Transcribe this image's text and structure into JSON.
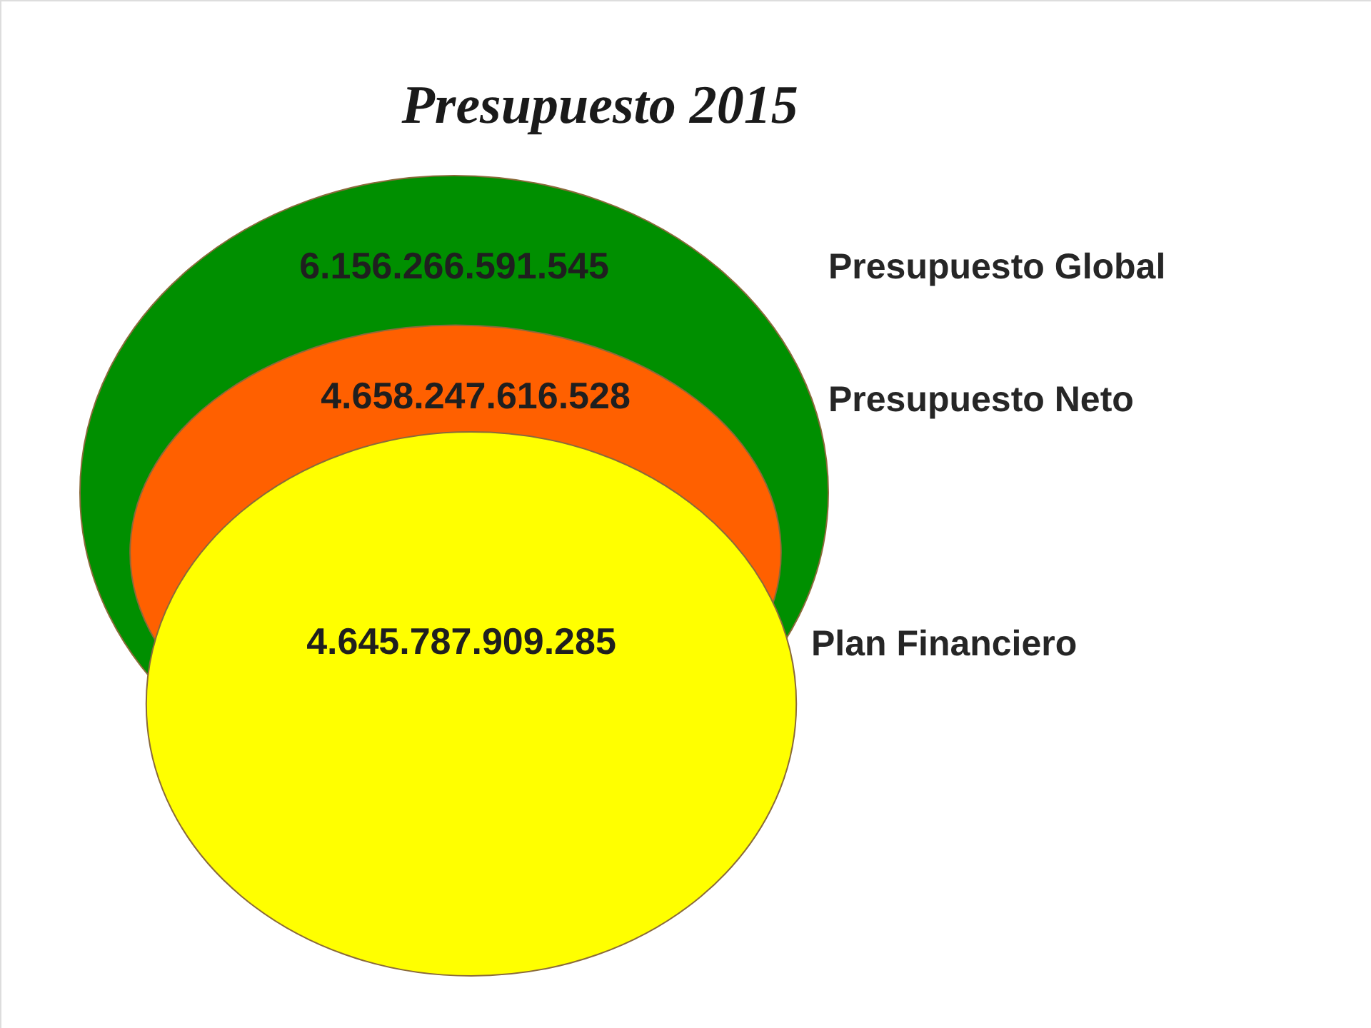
{
  "chart_data": {
    "type": "other",
    "title": "Presupuesto 2015",
    "categories": [
      "Presupuesto  Global",
      "Presupuesto  Neto",
      "Plan Financiero"
    ],
    "values": [
      6156266591545,
      4658247616528,
      4645787909285
    ],
    "colors": [
      "#008f00",
      "#ff6000",
      "#ffff00"
    ],
    "value_labels": [
      "6.156.266.591.545",
      "4.658.247.616.528",
      "4.645.787.909.285"
    ]
  }
}
